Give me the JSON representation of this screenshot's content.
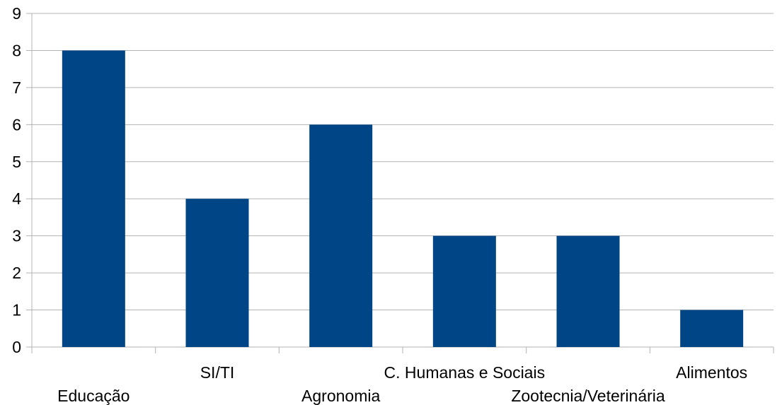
{
  "chart_data": {
    "type": "bar",
    "categories": [
      "Educação",
      "SI/TI",
      "Agronomia",
      "C. Humanas e Sociais",
      "Zootecnia/Veterinária",
      "Alimentos"
    ],
    "values": [
      8,
      4,
      6,
      3,
      3,
      1
    ],
    "ylim": [
      0,
      9
    ],
    "yticks": [
      "0",
      "1",
      "2",
      "3",
      "4",
      "5",
      "6",
      "7",
      "8",
      "9"
    ],
    "grid": true,
    "bar_color": "#004586",
    "grid_color": "#b3b3b3",
    "title": "",
    "xlabel": "",
    "ylabel": ""
  }
}
